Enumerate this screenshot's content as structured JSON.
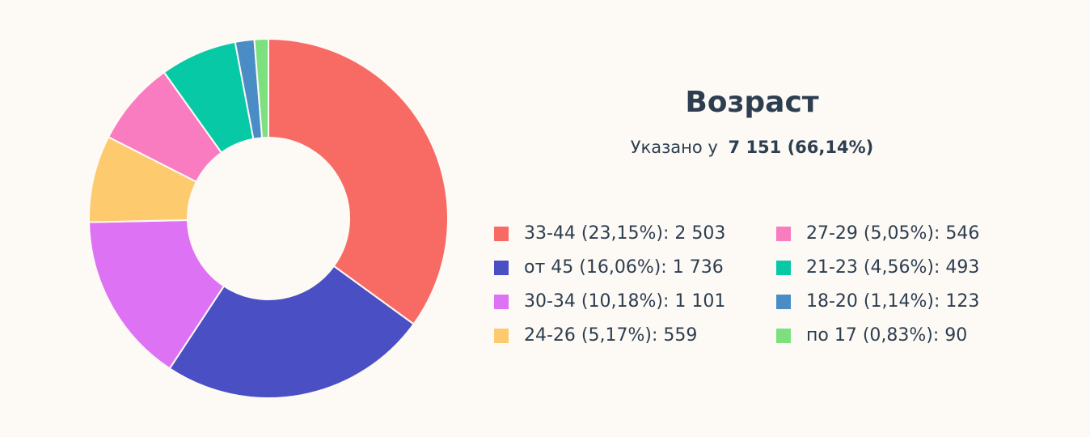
{
  "chart_data": {
    "type": "donut",
    "title": "Возраст",
    "subtitle": "Указано у",
    "subtitle_value": "7 151 (66,14%)",
    "categories": [
      "33-44 (23,15%): 2 503",
      "от 45 (16,06%): 1 736",
      "30-34 (10,18%): 1 101",
      "24-26 (5,17%): 559",
      "27-29 (5,05%): 546",
      "21-23 (4,56%): 493",
      "18-20 (1,14%): 123",
      "по 17 (0,83%): 90"
    ],
    "values": [
      2503,
      1736,
      1101,
      559,
      546,
      493,
      123,
      90
    ],
    "colors": [
      "#f76b64",
      "#4a4fc4",
      "#de72f5",
      "#fdca6e",
      "#f97bc0",
      "#07c9a5",
      "#4a8dc6",
      "#7de07f"
    ]
  }
}
